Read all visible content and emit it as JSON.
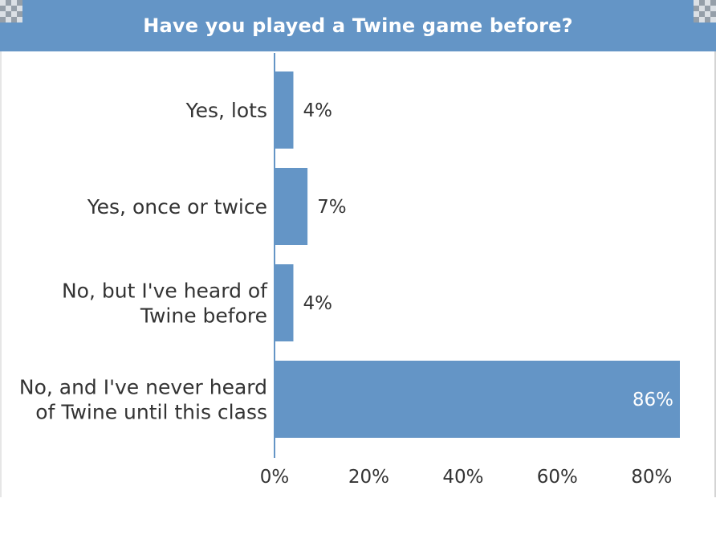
{
  "chart_data": {
    "type": "bar",
    "orientation": "horizontal",
    "title": "Have you played a Twine game before?",
    "categories": [
      [
        "Yes, lots"
      ],
      [
        "Yes, once or twice"
      ],
      [
        "No, but I've heard of",
        "Twine before"
      ],
      [
        "No, and I've never heard",
        "of Twine until this class"
      ]
    ],
    "values": [
      4,
      7,
      4,
      86
    ],
    "value_labels": [
      "4%",
      "7%",
      "4%",
      "86%"
    ],
    "xlim": [
      0,
      86
    ],
    "xticks": [
      0,
      20,
      40,
      60,
      80
    ],
    "xtick_labels": [
      "0%",
      "20%",
      "40%",
      "60%",
      "80%"
    ],
    "bar_color": "#6495c6",
    "header_color": "#6495c6",
    "grid": false
  }
}
